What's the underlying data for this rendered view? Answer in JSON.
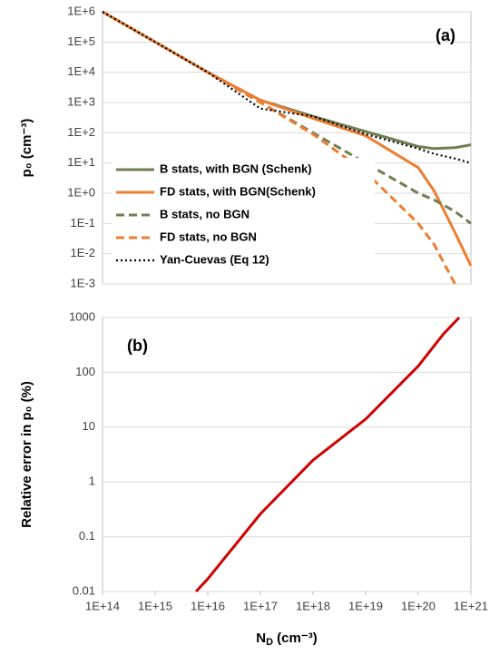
{
  "chart_data": [
    {
      "type": "line",
      "annotation": "(a)",
      "ylabel": "p₀ (cm⁻³)",
      "log": true,
      "grid": true,
      "legend": "bottom-left",
      "x": [
        100000000000000.0,
        1000000000000000.0,
        1e+16,
        1e+17,
        1e+18,
        1e+19,
        1e+20,
        2e+20,
        5e+20,
        1e+21
      ],
      "xlim": [
        100000000000000.0,
        1e+21
      ],
      "ylim": [
        0.001,
        1000000
      ],
      "yticks": [
        {
          "value": 1000000,
          "label": "1E+6"
        },
        {
          "value": 100000,
          "label": "1E+5"
        },
        {
          "value": 10000,
          "label": "1E+4"
        },
        {
          "value": 1000,
          "label": "1E+3"
        },
        {
          "value": 100,
          "label": "1E+2"
        },
        {
          "value": 10,
          "label": "1E+1"
        },
        {
          "value": 1,
          "label": "1E+0"
        },
        {
          "value": 0.1,
          "label": "1E-1"
        },
        {
          "value": 0.01,
          "label": "1E-2"
        },
        {
          "value": 0.001,
          "label": "1E-3"
        }
      ],
      "series": [
        {
          "name": "B stats, with BGN (Schenk)",
          "color": "#6f7f52",
          "style": "solid",
          "values": [
            1000000,
            100000,
            10000,
            1200,
            350,
            110,
            35,
            30,
            32,
            40
          ]
        },
        {
          "name": "FD stats, with BGN(Schenk)",
          "color": "#ed7d31",
          "style": "solid",
          "values": [
            1000000,
            100000,
            10000,
            1200,
            300,
            80,
            7,
            1.2,
            0.05,
            0.004
          ]
        },
        {
          "name": "B stats, no BGN",
          "color": "#6f7f52",
          "style": "dashed",
          "values": [
            1000000,
            100000,
            10000,
            1000,
            100,
            10,
            1,
            0.6,
            0.25,
            0.1
          ]
        },
        {
          "name": "FD stats, no BGN",
          "color": "#ed7d31",
          "style": "dashed",
          "values": [
            1000000,
            100000,
            10000,
            1000,
            90,
            5,
            0.1,
            0.02,
            0.001,
            null
          ]
        },
        {
          "name": "Yan-Cuevas (Eq 12)",
          "color": "#000000",
          "style": "dotted",
          "values": [
            1000000,
            100000,
            10000,
            630,
            350,
            90,
            30,
            20,
            14,
            10
          ]
        }
      ]
    },
    {
      "type": "line",
      "annotation": "(b)",
      "ylabel": "Relative error in p₀ (%)",
      "log": true,
      "grid": true,
      "xlabel": {
        "text": "N",
        "sub": "D",
        "rest": " (cm⁻³)"
      },
      "x": [
        6000000000000000.0,
        1e+16,
        1e+17,
        1e+18,
        1e+19,
        1e+20,
        3e+20,
        6e+20
      ],
      "xlim": [
        100000000000000.0,
        1e+21
      ],
      "xticks": [
        {
          "value": 100000000000000.0,
          "label": "1E+14"
        },
        {
          "value": 1000000000000000.0,
          "label": "1E+15"
        },
        {
          "value": 1e+16,
          "label": "1E+16"
        },
        {
          "value": 1e+17,
          "label": "1E+17"
        },
        {
          "value": 1e+18,
          "label": "1E+18"
        },
        {
          "value": 1e+19,
          "label": "1E+19"
        },
        {
          "value": 1e+20,
          "label": "1E+20"
        },
        {
          "value": 1e+21,
          "label": "1E+21"
        }
      ],
      "ylim": [
        0.01,
        1000
      ],
      "yticks": [
        1000,
        100,
        10,
        1,
        0.1,
        0.01
      ],
      "series": [
        {
          "color": "#d00000",
          "style": "solid",
          "values": [
            0.01,
            0.017,
            0.26,
            2.5,
            14,
            130,
            500,
            1000
          ]
        }
      ]
    }
  ]
}
